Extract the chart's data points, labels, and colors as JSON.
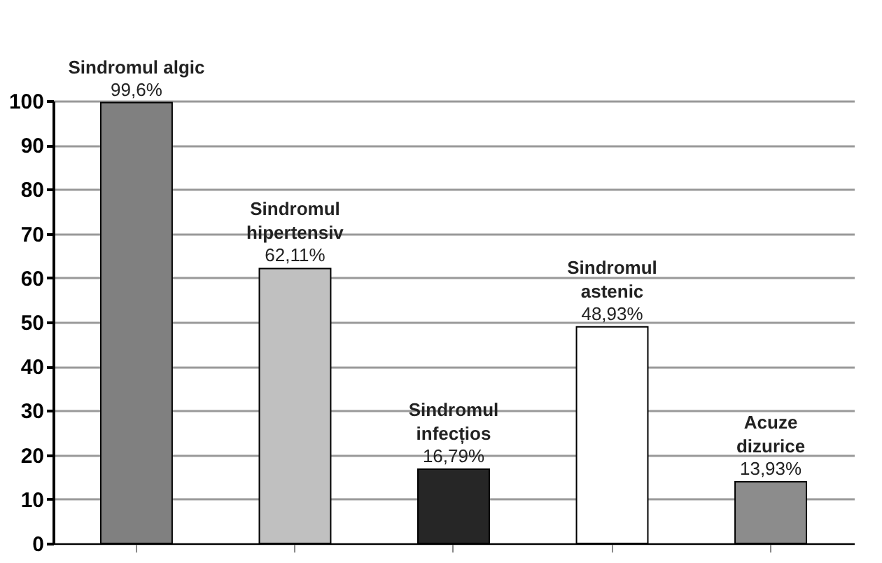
{
  "chart_data": {
    "type": "bar",
    "categories": [
      "Sindromul algic",
      "Sindromul\nhipertensiv",
      "Sindromul\ninfecțios",
      "Sindromul\nastenic",
      "Acuze\ndizurice"
    ],
    "values": [
      99.6,
      62.11,
      16.79,
      48.93,
      13.93
    ],
    "value_labels": [
      "99,6%",
      "62,11%",
      "16,79%",
      "48,93%",
      "13,93%"
    ],
    "colors": [
      "#808080",
      "#c0c0c0",
      "#262626",
      "#ffffff",
      "#8c8c8c"
    ],
    "ylim": [
      0,
      100
    ],
    "yticks": [
      0,
      10,
      20,
      30,
      40,
      50,
      60,
      70,
      80,
      90,
      100
    ],
    "grid": "y",
    "tick_labels": "y"
  }
}
